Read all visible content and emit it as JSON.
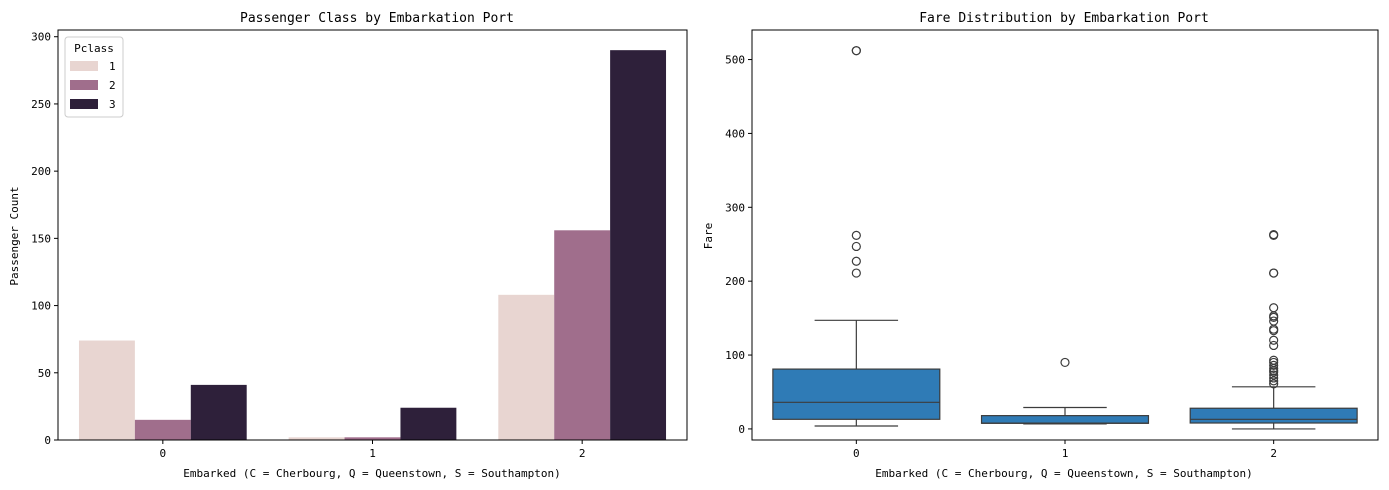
{
  "chart_data": [
    {
      "type": "bar",
      "title": "Passenger Class by Embarkation Port",
      "xlabel": "Embarked (C = Cherbourg, Q = Queenstown, S = Southampton)",
      "ylabel": "Passenger Count",
      "categories": [
        "0",
        "1",
        "2"
      ],
      "ylim": [
        0,
        305
      ],
      "yticks": [
        0,
        50,
        100,
        150,
        200,
        250,
        300
      ],
      "legend_title": "Pclass",
      "legend_position": "top-left",
      "series": [
        {
          "name": "1",
          "color": "#e8d5d1",
          "values": [
            74,
            2,
            108
          ]
        },
        {
          "name": "2",
          "color": "#a06e8c",
          "values": [
            15,
            2,
            156
          ]
        },
        {
          "name": "3",
          "color": "#2e203a",
          "values": [
            41,
            24,
            290
          ]
        }
      ]
    },
    {
      "type": "box",
      "title": "Fare Distribution by Embarkation Port",
      "xlabel": "Embarked (C = Cherbourg, Q = Queenstown, S = Southampton)",
      "ylabel": "Fare",
      "categories": [
        "0",
        "1",
        "2"
      ],
      "ylim": [
        -15,
        540
      ],
      "yticks": [
        0,
        100,
        200,
        300,
        400,
        500
      ],
      "box_color": "#2f7bb6",
      "boxes": [
        {
          "category": "0",
          "whisker_low": 4,
          "q1": 13,
          "median": 36,
          "q3": 81,
          "whisker_high": 147,
          "outliers": [
            211,
            227,
            247,
            262,
            512,
            512
          ]
        },
        {
          "category": "1",
          "whisker_low": 6.8,
          "q1": 7.6,
          "median": 7.8,
          "q3": 18,
          "whisker_high": 29,
          "outliers": [
            90
          ]
        },
        {
          "category": "2",
          "whisker_low": 0,
          "q1": 8,
          "median": 13,
          "q3": 28,
          "whisker_high": 57,
          "outliers": [
            61,
            65,
            69,
            73,
            77,
            79,
            82,
            86,
            90,
            93,
            113,
            120,
            133,
            135,
            146,
            151,
            153,
            164,
            211,
            211,
            262,
            263
          ]
        }
      ]
    }
  ]
}
